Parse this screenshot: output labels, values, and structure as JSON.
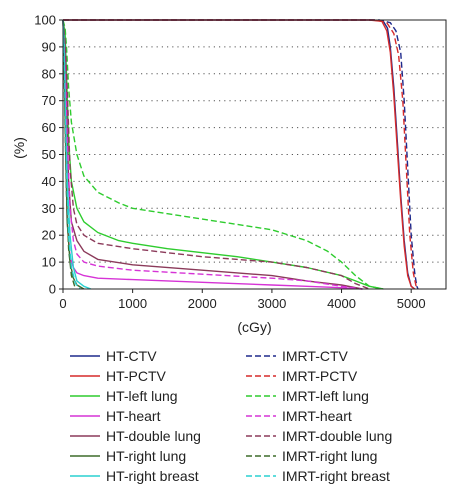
{
  "chart_data": {
    "type": "line",
    "title": "",
    "xlabel": "(cGy)",
    "ylabel": "(%)",
    "xlim": [
      0,
      5500
    ],
    "ylim": [
      0,
      100
    ],
    "xticks": [
      0,
      1000,
      2000,
      3000,
      4000,
      5000
    ],
    "yticks": [
      0,
      10,
      20,
      30,
      40,
      50,
      60,
      70,
      80,
      90,
      100
    ],
    "grid": "horizontal dotted",
    "legend_placement": "bottom, two columns",
    "series": [
      {
        "name": "HT-CTV",
        "color": "#1f2a8c",
        "style": "solid",
        "x": [
          0,
          4450,
          4600,
          4660,
          4700,
          4750,
          4800,
          4850,
          4900,
          4950,
          5000,
          5050
        ],
        "y": [
          100,
          100,
          99.5,
          97,
          90,
          75,
          55,
          35,
          18,
          6,
          1,
          0
        ]
      },
      {
        "name": "HT-PCTV",
        "color": "#d62a2a",
        "style": "solid",
        "x": [
          0,
          4400,
          4580,
          4650,
          4700,
          4750,
          4800,
          4850,
          4900,
          4950,
          5000,
          5050
        ],
        "y": [
          100,
          100,
          99.5,
          96,
          88,
          72,
          52,
          33,
          16,
          5,
          1,
          0
        ]
      },
      {
        "name": "HT-left lung",
        "color": "#2ecc2e",
        "style": "solid",
        "x": [
          0,
          30,
          50,
          80,
          120,
          200,
          300,
          500,
          800,
          1000,
          1500,
          2000,
          2500,
          3000,
          3500,
          4000,
          4200,
          4400,
          4600
        ],
        "y": [
          100,
          95,
          80,
          55,
          40,
          30,
          25,
          21,
          18,
          17,
          15,
          13.5,
          12,
          10,
          8,
          5,
          3,
          1,
          0
        ]
      },
      {
        "name": "HT-heart",
        "color": "#d633d6",
        "style": "solid",
        "x": [
          0,
          20,
          40,
          60,
          100,
          150,
          200,
          300,
          500,
          1000,
          2000,
          3000,
          3500,
          4000,
          4300
        ],
        "y": [
          100,
          80,
          50,
          25,
          12,
          8,
          6,
          5,
          4,
          3.5,
          2.5,
          1.5,
          1,
          0.5,
          0
        ]
      },
      {
        "name": "HT-double lung",
        "color": "#8b3a5a",
        "style": "solid",
        "x": [
          0,
          30,
          50,
          80,
          120,
          200,
          300,
          500,
          1000,
          2000,
          3000,
          3500,
          4000,
          4300
        ],
        "y": [
          100,
          90,
          70,
          40,
          25,
          18,
          14,
          11,
          9,
          7,
          5,
          3,
          1.5,
          0
        ]
      },
      {
        "name": "HT-right lung",
        "color": "#3d6b2a",
        "style": "solid",
        "x": [
          0,
          20,
          40,
          60,
          100,
          150,
          200,
          300
        ],
        "y": [
          100,
          80,
          50,
          25,
          10,
          4,
          1.5,
          0
        ]
      },
      {
        "name": "HT-right breast",
        "color": "#2ad0d0",
        "style": "solid",
        "x": [
          0,
          20,
          40,
          60,
          100,
          150,
          200,
          300,
          400
        ],
        "y": [
          100,
          90,
          65,
          40,
          20,
          8,
          3,
          1,
          0
        ]
      },
      {
        "name": "IMRT-CTV",
        "color": "#1f2a8c",
        "style": "dashed",
        "x": [
          0,
          4550,
          4700,
          4780,
          4850,
          4900,
          4950,
          5000,
          5050,
          5080,
          5100
        ],
        "y": [
          100,
          100,
          99,
          96,
          88,
          70,
          45,
          20,
          6,
          1,
          0
        ]
      },
      {
        "name": "IMRT-PCTV",
        "color": "#d62a2a",
        "style": "dashed",
        "x": [
          0,
          4500,
          4650,
          4750,
          4820,
          4880,
          4930,
          4980,
          5030,
          5070,
          5100
        ],
        "y": [
          100,
          100,
          99,
          95,
          87,
          70,
          45,
          20,
          6,
          1,
          0
        ]
      },
      {
        "name": "IMRT-left lung",
        "color": "#2ecc2e",
        "style": "dashed",
        "x": [
          0,
          30,
          50,
          80,
          120,
          200,
          300,
          500,
          800,
          1000,
          1500,
          2000,
          2500,
          3000,
          3500,
          3800,
          4000,
          4200,
          4400,
          4600
        ],
        "y": [
          100,
          97,
          90,
          75,
          62,
          50,
          42,
          36,
          32,
          30,
          28,
          26,
          24,
          22,
          18,
          14,
          10,
          5,
          1,
          0
        ]
      },
      {
        "name": "IMRT-heart",
        "color": "#d633d6",
        "style": "dashed",
        "x": [
          0,
          30,
          60,
          100,
          150,
          200,
          300,
          500,
          1000,
          2000,
          3000,
          3500,
          4000,
          4300
        ],
        "y": [
          100,
          85,
          55,
          30,
          18,
          13,
          10,
          8.5,
          7,
          5.5,
          4,
          3,
          1,
          0
        ]
      },
      {
        "name": "IMRT-double lung",
        "color": "#8b3a5a",
        "style": "dashed",
        "x": [
          0,
          30,
          60,
          100,
          150,
          200,
          300,
          500,
          1000,
          2000,
          3000,
          3500,
          4000,
          4200,
          4400
        ],
        "y": [
          100,
          92,
          75,
          45,
          30,
          24,
          20,
          17,
          15,
          12,
          10,
          8,
          5,
          2,
          0
        ]
      },
      {
        "name": "IMRT-right lung",
        "color": "#3d6b2a",
        "style": "dashed",
        "x": [
          0,
          15,
          30,
          50,
          80,
          120,
          180
        ],
        "y": [
          100,
          85,
          60,
          35,
          15,
          5,
          0
        ]
      },
      {
        "name": "IMRT-right breast",
        "color": "#2ad0d0",
        "style": "dashed",
        "x": [
          0,
          15,
          30,
          50,
          80,
          120,
          180,
          250
        ],
        "y": [
          100,
          90,
          70,
          45,
          20,
          8,
          2,
          0
        ]
      }
    ]
  }
}
